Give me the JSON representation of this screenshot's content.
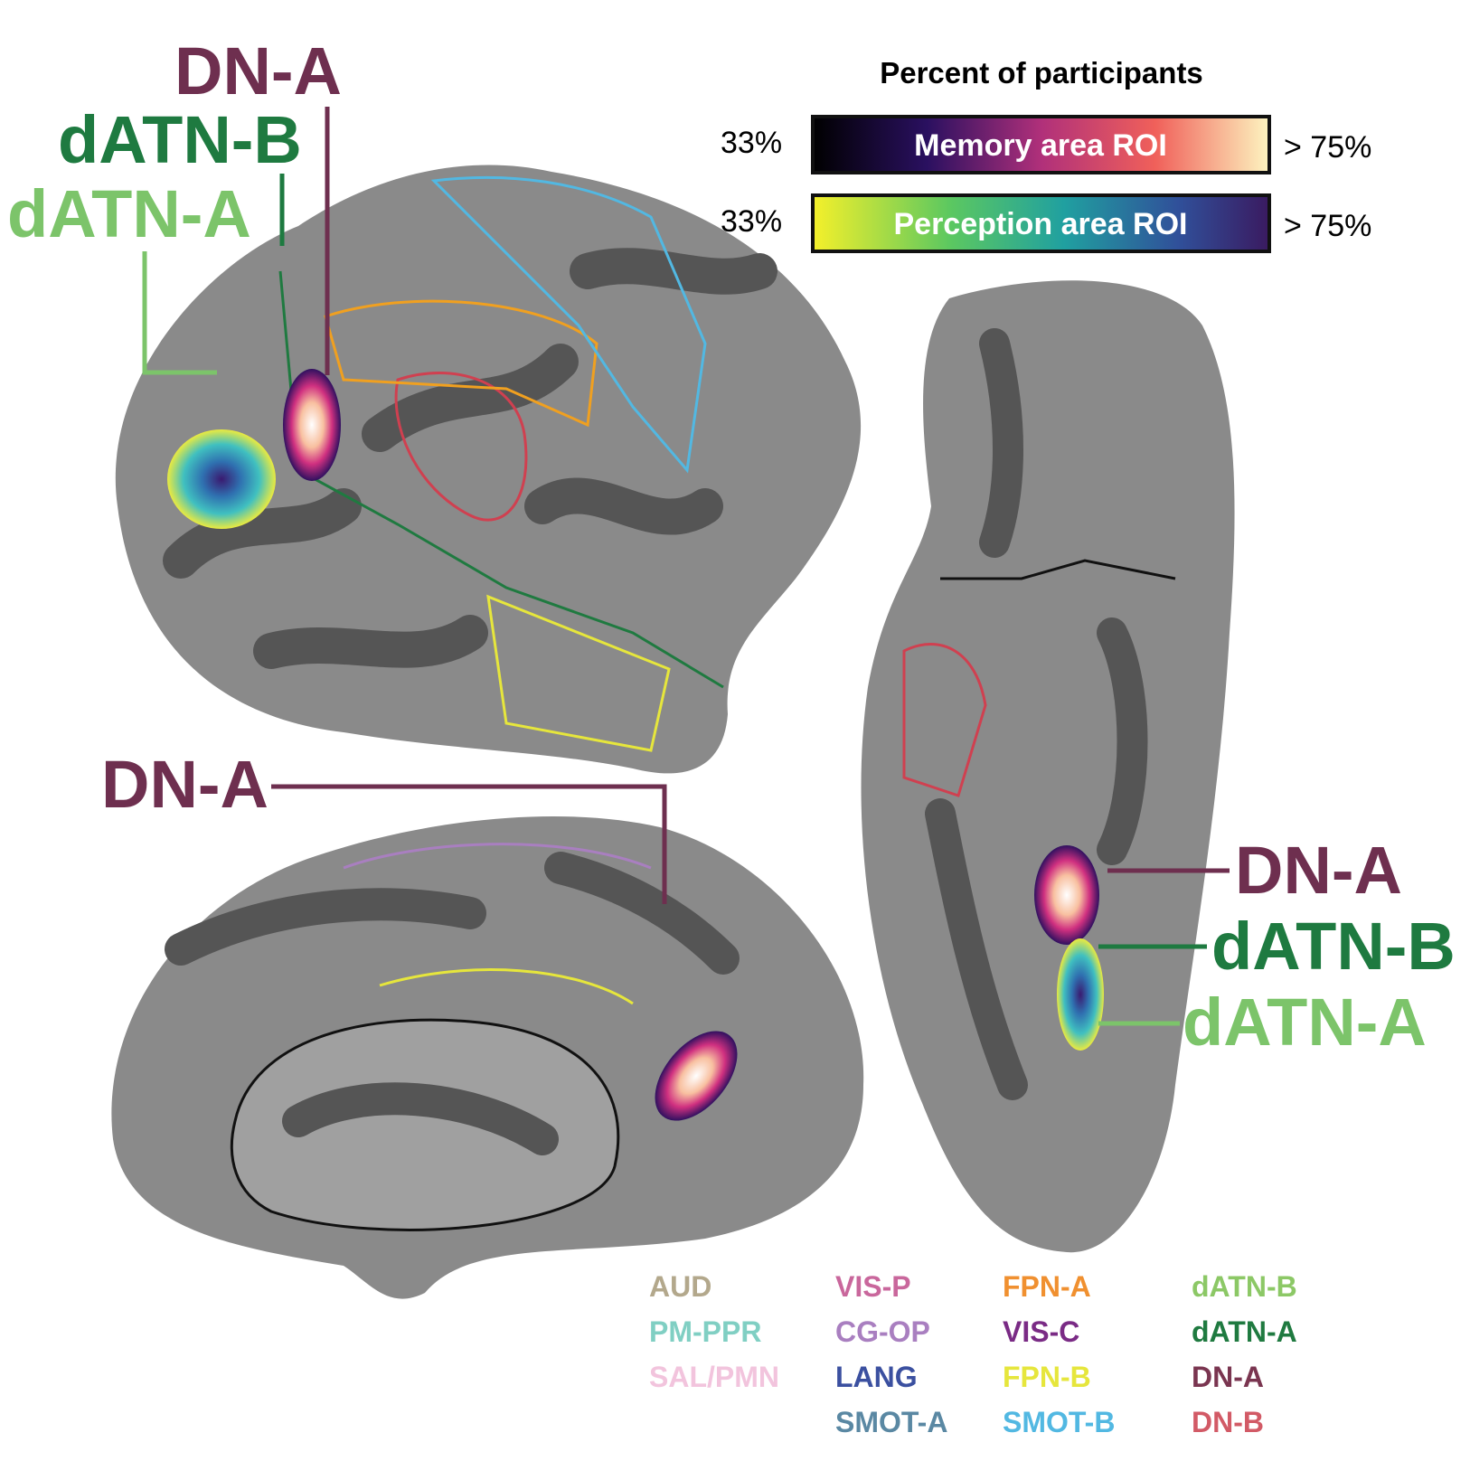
{
  "annotations": [
    {
      "label": "DN-A",
      "color": "#6e2f4f"
    },
    {
      "label": "dATN-B",
      "color": "#1e7a40"
    },
    {
      "label": "dATN-A",
      "color": "#7cc46a"
    },
    {
      "label": "DN-A",
      "color": "#6e2f4f"
    },
    {
      "label": "DN-A",
      "color": "#6e2f4f"
    },
    {
      "label": "dATN-B",
      "color": "#1e7a40"
    },
    {
      "label": "dATN-A",
      "color": "#7cc46a"
    }
  ],
  "colorbar": {
    "title": "Percent of participants",
    "bars": [
      {
        "min_label": "33%",
        "name": "Memory area ROI",
        "max_label": "> 75%"
      },
      {
        "min_label": "33%",
        "name": "Perception area ROI",
        "max_label": "> 75%"
      }
    ]
  },
  "legend": {
    "columns": [
      [
        {
          "label": "AUD",
          "color": "#b3a88c"
        },
        {
          "label": "PM-PPR",
          "color": "#80cfc3"
        },
        {
          "label": "SAL/PMN",
          "color": "#f2c4dd"
        }
      ],
      [
        {
          "label": "VIS-P",
          "color": "#c9679c"
        },
        {
          "label": "CG-OP",
          "color": "#a97fc0"
        },
        {
          "label": "LANG",
          "color": "#3b50a0"
        },
        {
          "label": "SMOT-A",
          "color": "#5a88a3"
        }
      ],
      [
        {
          "label": "FPN-A",
          "color": "#f09030"
        },
        {
          "label": "VIS-C",
          "color": "#7a2b85"
        },
        {
          "label": "FPN-B",
          "color": "#e6e63c"
        },
        {
          "label": "SMOT-B",
          "color": "#52b8e2"
        }
      ],
      [
        {
          "label": "dATN-B",
          "color": "#8cc866"
        },
        {
          "label": "dATN-A",
          "color": "#1f7a40"
        },
        {
          "label": "DN-A",
          "color": "#7a3550"
        },
        {
          "label": "DN-B",
          "color": "#d25a66"
        }
      ]
    ]
  }
}
